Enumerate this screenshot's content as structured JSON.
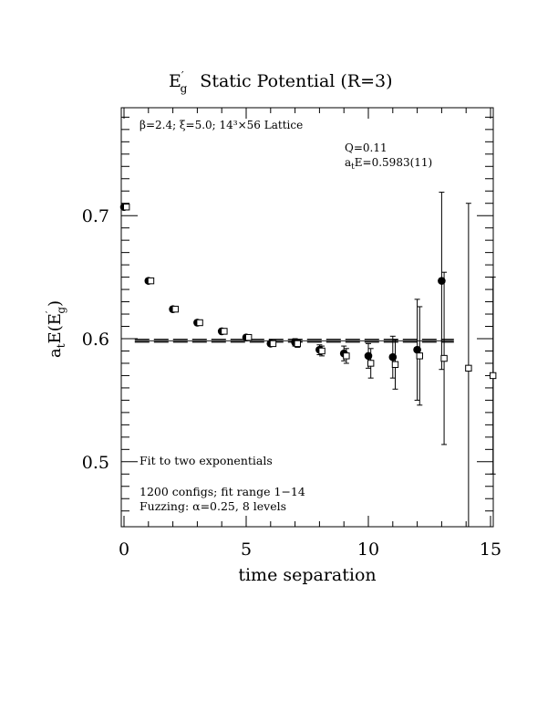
{
  "chart_data": {
    "type": "scatter",
    "title_main": "E",
    "title_sub": "g",
    "title_prime": "′",
    "title_rest": "Static Potential (R=3)",
    "xlabel": "time separation",
    "ylabel_parts": {
      "a": "a",
      "t": "t",
      "E": "E(E",
      "prime": "′",
      "g": "g",
      "close": ")"
    },
    "xlim": [
      0,
      15
    ],
    "ylim": [
      0.45,
      0.79
    ],
    "x_ticks": [
      0,
      5,
      10,
      15
    ],
    "y_ticks": [
      0.5,
      0.6,
      0.7
    ],
    "x_tick_labels": [
      "0",
      "5",
      "10",
      "15"
    ],
    "y_tick_labels": [
      "0.5",
      "0.6",
      "0.7"
    ],
    "annotations": {
      "lattice": "β=2.4; ξ=5.0; 14³×56 Lattice",
      "q": "Q=0.11",
      "ate_prefix": "a",
      "ate_sub": "t",
      "ate_rest": "E=0.5983(11)",
      "fit": "Fit to two exponentials",
      "configs": "1200 configs; fit range 1−14",
      "fuzzing": "Fuzzing: α=0.25, 8 levels"
    },
    "fit": {
      "value": 0.5983,
      "err": 0.0011,
      "x_start": 1,
      "x_end": 13.5
    },
    "series": [
      {
        "marker": "filled-circle",
        "points": [
          {
            "x": 0,
            "y": 0.707,
            "err": 0.0015
          },
          {
            "x": 1,
            "y": 0.647,
            "err": 0.002
          },
          {
            "x": 2,
            "y": 0.624,
            "err": 0.002
          },
          {
            "x": 3,
            "y": 0.613,
            "err": 0.002
          },
          {
            "x": 4,
            "y": 0.606,
            "err": 0.002
          },
          {
            "x": 5,
            "y": 0.601,
            "err": 0.002
          },
          {
            "x": 6,
            "y": 0.596,
            "err": 0.002
          },
          {
            "x": 7,
            "y": 0.597,
            "err": 0.003
          },
          {
            "x": 8,
            "y": 0.591,
            "err": 0.004
          },
          {
            "x": 9,
            "y": 0.588,
            "err": 0.006
          },
          {
            "x": 10,
            "y": 0.586,
            "err": 0.01
          },
          {
            "x": 11,
            "y": 0.585,
            "err": 0.017
          },
          {
            "x": 12,
            "y": 0.591,
            "err": 0.041
          },
          {
            "x": 13,
            "y": 0.647,
            "err": 0.072
          }
        ]
      },
      {
        "marker": "open-square",
        "points": [
          {
            "x": 0.1,
            "y": 0.707,
            "err": 0.0015
          },
          {
            "x": 1.1,
            "y": 0.647,
            "err": 0.002
          },
          {
            "x": 2.1,
            "y": 0.624,
            "err": 0.002
          },
          {
            "x": 3.1,
            "y": 0.613,
            "err": 0.002
          },
          {
            "x": 4.1,
            "y": 0.606,
            "err": 0.002
          },
          {
            "x": 5.1,
            "y": 0.601,
            "err": 0.002
          },
          {
            "x": 6.1,
            "y": 0.596,
            "err": 0.002
          },
          {
            "x": 7.1,
            "y": 0.596,
            "err": 0.003
          },
          {
            "x": 8.1,
            "y": 0.59,
            "err": 0.004
          },
          {
            "x": 9.1,
            "y": 0.586,
            "err": 0.006
          },
          {
            "x": 10.1,
            "y": 0.58,
            "err": 0.012
          },
          {
            "x": 11.1,
            "y": 0.579,
            "err": 0.02
          },
          {
            "x": 12.1,
            "y": 0.586,
            "err": 0.04
          },
          {
            "x": 13.1,
            "y": 0.584,
            "err": 0.07
          },
          {
            "x": 14.1,
            "y": 0.576,
            "err": 0.134
          },
          {
            "x": 15.1,
            "y": 0.57,
            "err": 0.08
          }
        ]
      }
    ]
  }
}
